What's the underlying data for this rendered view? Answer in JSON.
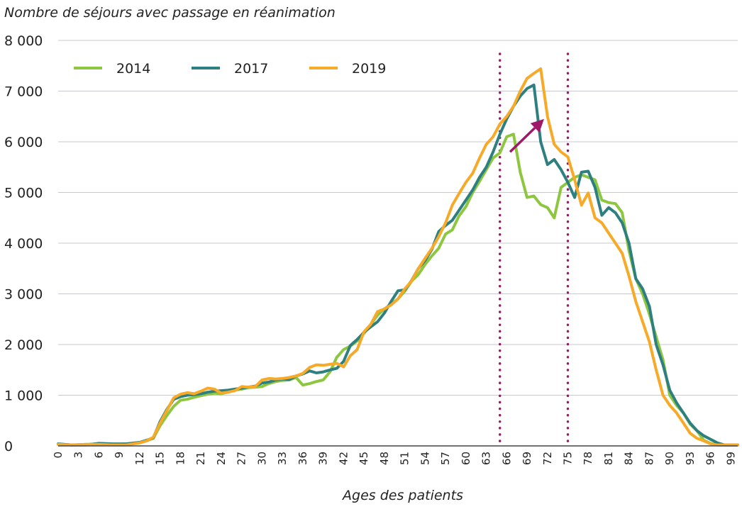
{
  "chart_data": {
    "type": "line",
    "title": "Nombre de séjours avec passage en réanimation",
    "xlabel": "Ages des patients",
    "ylabel": "",
    "xlim": [
      0,
      100
    ],
    "ylim": [
      0,
      8000
    ],
    "y_ticks": [
      0,
      1000,
      2000,
      3000,
      4000,
      5000,
      6000,
      7000,
      8000
    ],
    "y_tick_labels": [
      "0",
      "1 000",
      "2 000",
      "3 000",
      "4 000",
      "5 000",
      "6 000",
      "7 000",
      "8 000"
    ],
    "x_ticks": [
      0,
      3,
      6,
      9,
      12,
      15,
      18,
      21,
      24,
      27,
      30,
      33,
      36,
      39,
      42,
      45,
      48,
      51,
      54,
      57,
      60,
      63,
      66,
      69,
      72,
      75,
      78,
      81,
      84,
      87,
      90,
      93,
      96,
      99
    ],
    "x_tick_labels": [
      "0",
      "3",
      "6",
      "9",
      "12",
      "15",
      "18",
      "21",
      "24",
      "27",
      "30",
      "33",
      "36",
      "39",
      "42",
      "45",
      "48",
      "51",
      "54",
      "57",
      "60",
      "63",
      "66",
      "69",
      "72",
      "75",
      "78",
      "81",
      "84",
      "87",
      "90",
      "93",
      "96",
      "99"
    ],
    "grid": true,
    "legend_position": "top-left",
    "reference_lines_x": [
      65,
      75
    ],
    "reference_line_color": "#a0186a",
    "arrow": {
      "from": [
        66.5,
        5800
      ],
      "to": [
        71.5,
        6450
      ],
      "color": "#a0186a"
    },
    "x": [
      0,
      2,
      4,
      6,
      8,
      10,
      12,
      13,
      14,
      15,
      16,
      17,
      18,
      19,
      20,
      21,
      22,
      23,
      24,
      25,
      26,
      27,
      28,
      29,
      30,
      31,
      32,
      33,
      34,
      35,
      36,
      37,
      38,
      39,
      40,
      41,
      42,
      43,
      44,
      45,
      46,
      47,
      48,
      49,
      50,
      51,
      52,
      53,
      54,
      55,
      56,
      57,
      58,
      59,
      60,
      61,
      62,
      63,
      64,
      65,
      66,
      67,
      68,
      69,
      70,
      71,
      72,
      73,
      74,
      75,
      76,
      77,
      78,
      79,
      80,
      81,
      82,
      83,
      84,
      85,
      86,
      87,
      88,
      89,
      90,
      91,
      92,
      93,
      94,
      95,
      96,
      97,
      98,
      99,
      100
    ],
    "series": [
      {
        "name": "2014",
        "color": "#8dc63f",
        "values": [
          30,
          20,
          30,
          40,
          30,
          40,
          60,
          100,
          150,
          400,
          600,
          780,
          900,
          920,
          960,
          990,
          1020,
          1040,
          1030,
          1060,
          1100,
          1120,
          1150,
          1160,
          1170,
          1230,
          1270,
          1290,
          1300,
          1350,
          1200,
          1230,
          1270,
          1300,
          1460,
          1750,
          1900,
          1970,
          2070,
          2220,
          2400,
          2580,
          2700,
          2800,
          2900,
          3050,
          3250,
          3380,
          3580,
          3750,
          3900,
          4180,
          4260,
          4540,
          4720,
          5000,
          5220,
          5450,
          5680,
          5780,
          6100,
          6150,
          5400,
          4900,
          4930,
          4760,
          4700,
          4500,
          5100,
          5200,
          5300,
          5350,
          5300,
          5250,
          4850,
          4800,
          4780,
          4600,
          3850,
          3300,
          3000,
          2600,
          2150,
          1700,
          1000,
          800,
          650,
          430,
          300,
          110,
          50,
          20,
          20,
          20,
          20
        ]
      },
      {
        "name": "2017",
        "color": "#2e8080",
        "values": [
          40,
          20,
          20,
          50,
          40,
          40,
          70,
          110,
          160,
          480,
          720,
          920,
          970,
          1000,
          1010,
          1030,
          1060,
          1080,
          1090,
          1100,
          1120,
          1140,
          1160,
          1180,
          1240,
          1260,
          1300,
          1320,
          1310,
          1380,
          1420,
          1480,
          1440,
          1460,
          1500,
          1530,
          1670,
          1980,
          2100,
          2240,
          2350,
          2450,
          2620,
          2850,
          3060,
          3080,
          3260,
          3500,
          3660,
          3880,
          4230,
          4350,
          4450,
          4650,
          4850,
          5050,
          5300,
          5500,
          5800,
          6150,
          6450,
          6700,
          6900,
          7050,
          7120,
          6000,
          5550,
          5650,
          5450,
          5200,
          4900,
          5400,
          5420,
          5100,
          4550,
          4700,
          4600,
          4400,
          4000,
          3300,
          3100,
          2750,
          2000,
          1600,
          1100,
          850,
          650,
          450,
          300,
          200,
          130,
          60,
          20,
          20,
          20
        ]
      },
      {
        "name": "2019",
        "color": "#f7a928",
        "values": [
          30,
          20,
          30,
          30,
          20,
          20,
          60,
          100,
          170,
          450,
          700,
          950,
          1020,
          1050,
          1030,
          1080,
          1140,
          1120,
          1040,
          1060,
          1090,
          1170,
          1160,
          1170,
          1300,
          1330,
          1320,
          1330,
          1350,
          1380,
          1430,
          1550,
          1600,
          1590,
          1610,
          1630,
          1560,
          1780,
          1900,
          2250,
          2400,
          2650,
          2700,
          2780,
          2900,
          3100,
          3250,
          3500,
          3700,
          3900,
          4130,
          4400,
          4750,
          4980,
          5200,
          5380,
          5680,
          5950,
          6100,
          6350,
          6500,
          6700,
          7000,
          7250,
          7350,
          7440,
          6500,
          5950,
          5800,
          5700,
          5250,
          4750,
          4990,
          4500,
          4400,
          4200,
          4000,
          3800,
          3350,
          2850,
          2450,
          2050,
          1500,
          1000,
          800,
          650,
          450,
          250,
          150,
          100,
          40,
          20,
          20,
          20,
          20
        ]
      }
    ]
  }
}
